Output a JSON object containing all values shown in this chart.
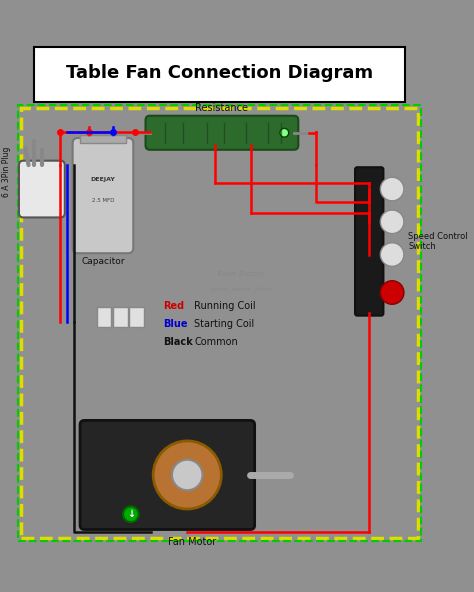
{
  "title": "Table Fan Connection Diagram",
  "bg_color": "#909090",
  "title_box_color": "#ffffff",
  "title_text_color": "#000000",
  "title_fontsize": 13,
  "labels": {
    "plug": "6 A 3Pin Plug",
    "capacitor": "Capacitor",
    "resistance": "Resistance",
    "speed_switch": "Speed Control\nSwitch",
    "fan_motor": "Fan Motor",
    "red_label": "Red",
    "blue_label": "Blue",
    "black_label": "Black",
    "running_coil": "Running Coil",
    "starting_coil": "Starting Coil",
    "common": "Common",
    "watermark1": "Excel Electric",
    "watermark2": "@excel_electric_official"
  },
  "colors": {
    "red_wire": "#ff0000",
    "blue_wire": "#0000ff",
    "black_wire": "#111111",
    "green_wire": "#00cc00",
    "yellow_wire": "#dddd00",
    "white": "#ffffff",
    "capacitor_body": "#c8c8c8",
    "resistor_body": "#2d6b2d",
    "motor_body": "#252525",
    "motor_coil": "#b87333",
    "plug_body": "#e8e8e8",
    "switch_body": "#1a1a1a",
    "connector_body": "#e0e0e0",
    "watermark_color": "#777777"
  }
}
